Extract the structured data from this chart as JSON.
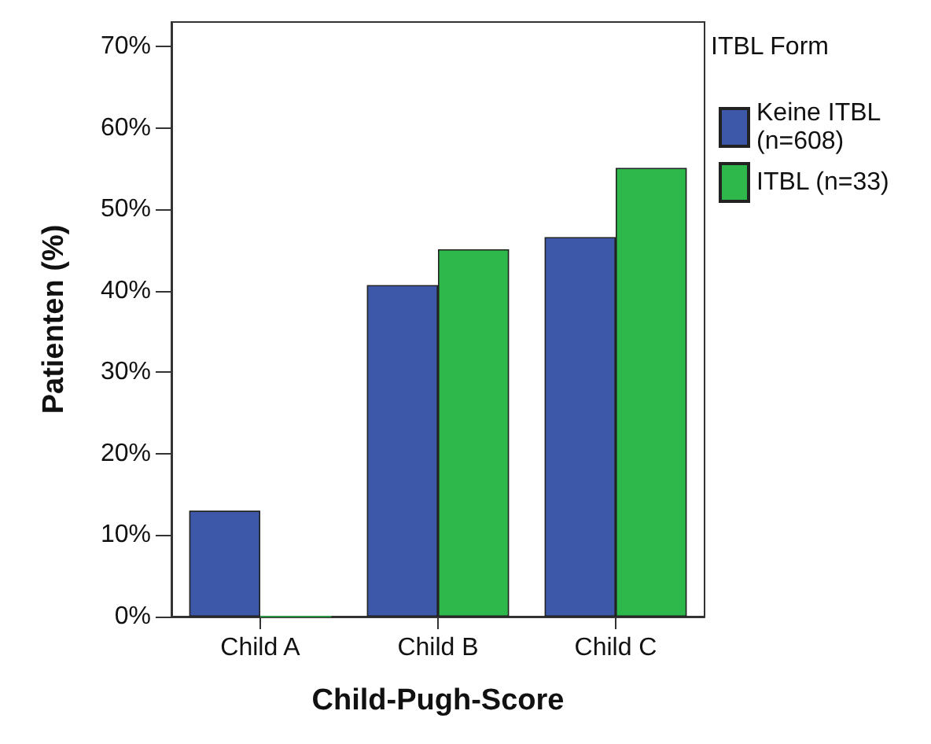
{
  "chart_data": {
    "type": "bar",
    "xlabel": "Child-Pugh-Score",
    "ylabel": "Patienten (%)",
    "legend_title": "ITBL Form",
    "categories": [
      "Child A",
      "Child B",
      "Child C"
    ],
    "series": [
      {
        "name": "Keine ITBL\n(n=608)",
        "color": "#3d58a8",
        "values": [
          13.0,
          40.7,
          46.6
        ]
      },
      {
        "name": "ITBL (n=33)",
        "color": "#2eb74a",
        "values": [
          0,
          45.1,
          55.1
        ]
      }
    ],
    "ylim": [
      0,
      73
    ],
    "yticks": [
      {
        "value": 0,
        "label": "0%"
      },
      {
        "value": 10,
        "label": "10%"
      },
      {
        "value": 20,
        "label": "20%"
      },
      {
        "value": 30,
        "label": "30%"
      },
      {
        "value": 40,
        "label": "40%"
      },
      {
        "value": 50,
        "label": "50%"
      },
      {
        "value": 60,
        "label": "60%"
      },
      {
        "value": 70,
        "label": "70%"
      }
    ],
    "grid": false,
    "legend": "right"
  }
}
